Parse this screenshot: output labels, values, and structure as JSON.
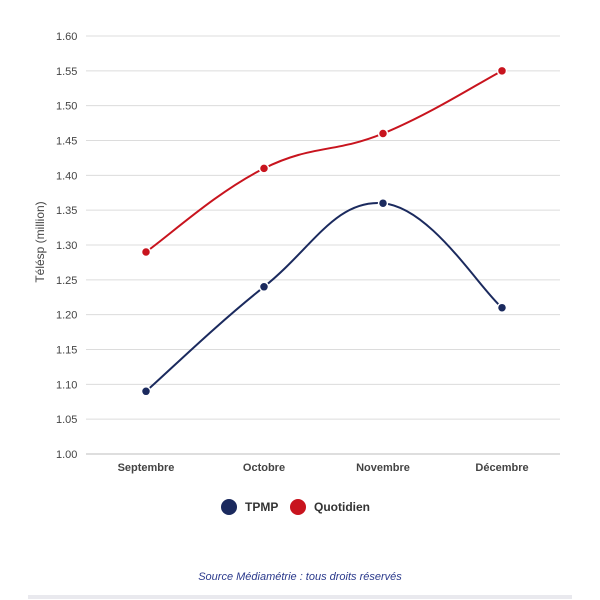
{
  "chart_data": {
    "type": "line",
    "categories": [
      "Septembre",
      "Octobre",
      "Novembre",
      "Décembre"
    ],
    "series": [
      {
        "name": "TPMP",
        "color": "#1b2a5e",
        "values": [
          1.09,
          1.24,
          1.36,
          1.21
        ]
      },
      {
        "name": "Quotidien",
        "color": "#c8141e",
        "values": [
          1.29,
          1.41,
          1.46,
          1.55
        ]
      }
    ],
    "ylabel": "Télésp (million)",
    "ylim": [
      1.0,
      1.6
    ],
    "yticks": [
      "1.00",
      "1.05",
      "1.10",
      "1.15",
      "1.20",
      "1.25",
      "1.30",
      "1.35",
      "1.40",
      "1.45",
      "1.50",
      "1.55",
      "1.60"
    ],
    "grid": true,
    "smooth": true,
    "legend_position": "bottom"
  },
  "source": "Source Médiamétrie : tous droits réservés"
}
